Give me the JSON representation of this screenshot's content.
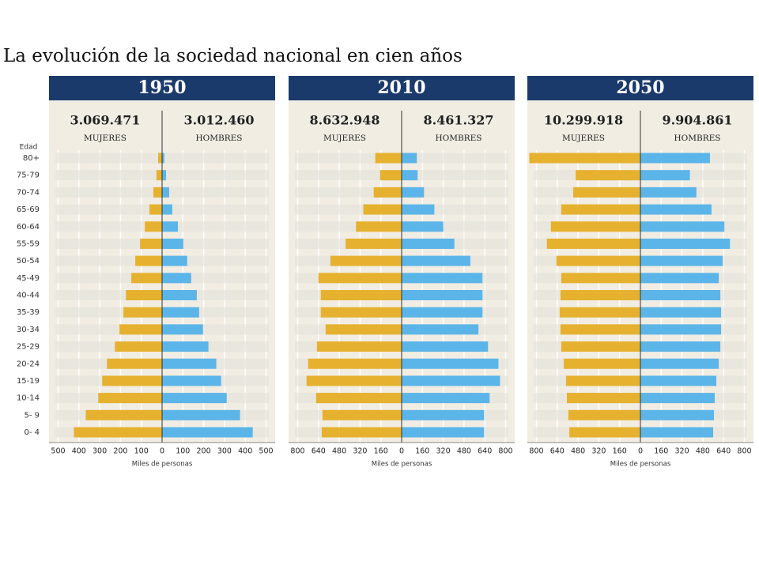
{
  "title": "La evolución de la sociedad nacional en cien años",
  "y_label": "Edad",
  "categories": [
    "80+",
    "75-79",
    "70-74",
    "65-69",
    "60-64",
    "55-59",
    "50-54",
    "45-49",
    "40-44",
    "35-39",
    "30-34",
    "25-29",
    "20-24",
    "15-19",
    "10-14",
    "5- 9",
    "0- 4"
  ],
  "chart_data": [
    {
      "type": "pyramid",
      "title": "1950",
      "x_label": "Miles de personas",
      "xlim": [
        0,
        500
      ],
      "xticks": [
        0,
        100,
        200,
        300,
        400,
        500
      ],
      "series": [
        {
          "name": "MUJERES",
          "total": "3.069.471",
          "color": "#e6b12e",
          "values": [
            19,
            27,
            42,
            61,
            83,
            106,
            129,
            148,
            174,
            186,
            205,
            227,
            265,
            288,
            307,
            367,
            424
          ]
        },
        {
          "name": "HOMBRES",
          "total": "3.012.460",
          "color": "#5cb5e8",
          "values": [
            11,
            19,
            34,
            49,
            76,
            102,
            121,
            140,
            167,
            178,
            197,
            223,
            261,
            284,
            311,
            375,
            436
          ]
        }
      ]
    },
    {
      "type": "pyramid",
      "title": "2010",
      "x_label": "Miles de personas",
      "xlim": [
        0,
        800
      ],
      "xticks": [
        0,
        160,
        320,
        480,
        640,
        800
      ],
      "series": [
        {
          "name": "MUJERES",
          "total": "8.632.948",
          "color": "#e6b12e",
          "values": [
            203,
            166,
            215,
            295,
            351,
            431,
            548,
            640,
            622,
            622,
            585,
            652,
            720,
            732,
            658,
            609,
            615
          ]
        },
        {
          "name": "HOMBRES",
          "total": "8.461.327",
          "color": "#5cb5e8",
          "values": [
            117,
            123,
            172,
            252,
            320,
            406,
            529,
            622,
            622,
            622,
            591,
            665,
            745,
            757,
            677,
            634,
            634
          ]
        }
      ]
    },
    {
      "type": "pyramid",
      "title": "2050",
      "x_label": "Miles de personas",
      "xlim": [
        0,
        800
      ],
      "xticks": [
        0,
        160,
        320,
        480,
        640,
        800
      ],
      "series": [
        {
          "name": "MUJERES",
          "total": "10.299.918",
          "color": "#e6b12e",
          "values": [
            855,
            498,
            517,
            609,
            689,
            720,
            646,
            609,
            615,
            621,
            615,
            609,
            590,
            572,
            566,
            554,
            547
          ]
        },
        {
          "name": "HOMBRES",
          "total": "9.904.861",
          "color": "#5cb5e8",
          "values": [
            535,
            381,
            431,
            547,
            646,
            689,
            633,
            603,
            615,
            621,
            621,
            615,
            603,
            584,
            572,
            566,
            560
          ]
        }
      ]
    }
  ]
}
